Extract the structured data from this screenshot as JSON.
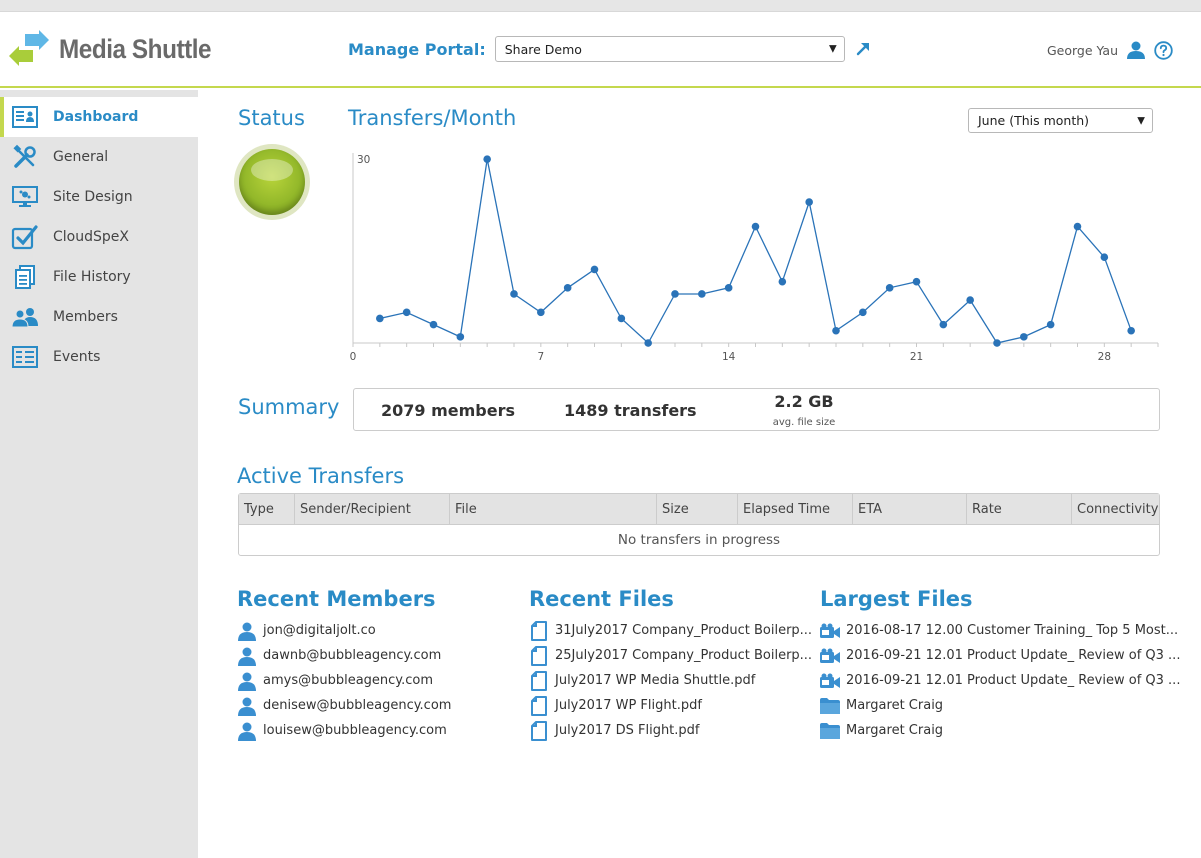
{
  "brand": {
    "name": "Media Shuttle"
  },
  "header": {
    "portal_label": "Manage Portal:",
    "portal_value": "Share Demo",
    "user_name": "George Yau"
  },
  "sidebar": {
    "items": [
      {
        "label": "Dashboard",
        "icon": "dashboard-icon",
        "active": true
      },
      {
        "label": "General",
        "icon": "tools-icon"
      },
      {
        "label": "Site Design",
        "icon": "monitor-icon"
      },
      {
        "label": "CloudSpeX",
        "icon": "checkbox-icon"
      },
      {
        "label": "File History",
        "icon": "documents-icon"
      },
      {
        "label": "Members",
        "icon": "users-icon"
      },
      {
        "label": "Events",
        "icon": "list-icon"
      }
    ]
  },
  "status": {
    "title": "Status",
    "state_color": "#93b82a"
  },
  "transfers_month": {
    "title": "Transfers/Month",
    "month_select": "June (This month)"
  },
  "chart_data": {
    "type": "line",
    "x": [
      1,
      2,
      3,
      4,
      5,
      6,
      7,
      8,
      9,
      10,
      11,
      12,
      13,
      14,
      15,
      16,
      17,
      18,
      19,
      20,
      21,
      22,
      23,
      24,
      25,
      26,
      27,
      28,
      29
    ],
    "series": [
      {
        "values": [
          4,
          5,
          3,
          1,
          30,
          8,
          5,
          9,
          12,
          4,
          0,
          8,
          8,
          9,
          19,
          10,
          23,
          2,
          5,
          9,
          10,
          3,
          7,
          0,
          1,
          3,
          19,
          14,
          2
        ]
      }
    ],
    "xticks": [
      "0",
      "7",
      "14",
      "21",
      "28"
    ],
    "yticks": [
      "30"
    ],
    "xlim": [
      0,
      30
    ],
    "ylim": [
      0,
      31
    ],
    "color": "#2a73b8",
    "grid": false
  },
  "summary": {
    "title": "Summary",
    "members": "2079 members",
    "transfers": "1489 transfers",
    "avg_size": "2.2 GB",
    "avg_size_label": "avg. file size"
  },
  "active_transfers": {
    "title": "Active Transfers",
    "columns": [
      "Type",
      "Sender/Recipient",
      "File",
      "Size",
      "Elapsed Time",
      "ETA",
      "Rate",
      "Connectivity"
    ],
    "empty_text": "No transfers in progress"
  },
  "recent_members": {
    "title": "Recent Members",
    "items": [
      "jon@digitaljolt.co",
      "dawnb@bubbleagency.com",
      "amys@bubbleagency.com",
      "denisew@bubbleagency.com",
      "louisew@bubbleagency.com"
    ]
  },
  "recent_files": {
    "title": "Recent Files",
    "items": [
      "31July2017 Company_Product Boilerp...",
      "25July2017 Company_Product Boilerp...",
      "July2017 WP Media Shuttle.pdf",
      "July2017 WP Flight.pdf",
      "July2017 DS Flight.pdf"
    ]
  },
  "largest_files": {
    "title": "Largest Files",
    "items": [
      {
        "label": "2016-08-17 12.00 Customer Training_ Top 5 Most...",
        "icon": "video-icon"
      },
      {
        "label": "2016-09-21 12.01 Product Update_ Review of Q3 ...",
        "icon": "video-icon"
      },
      {
        "label": "2016-09-21 12.01 Product Update_ Review of Q3 ...",
        "icon": "video-icon"
      },
      {
        "label": "Margaret Craig",
        "icon": "folder-icon"
      },
      {
        "label": "Margaret Craig",
        "icon": "folder-icon"
      }
    ]
  },
  "colors": {
    "accent": "#2a8bc6",
    "brand_green": "#c4d84e"
  }
}
